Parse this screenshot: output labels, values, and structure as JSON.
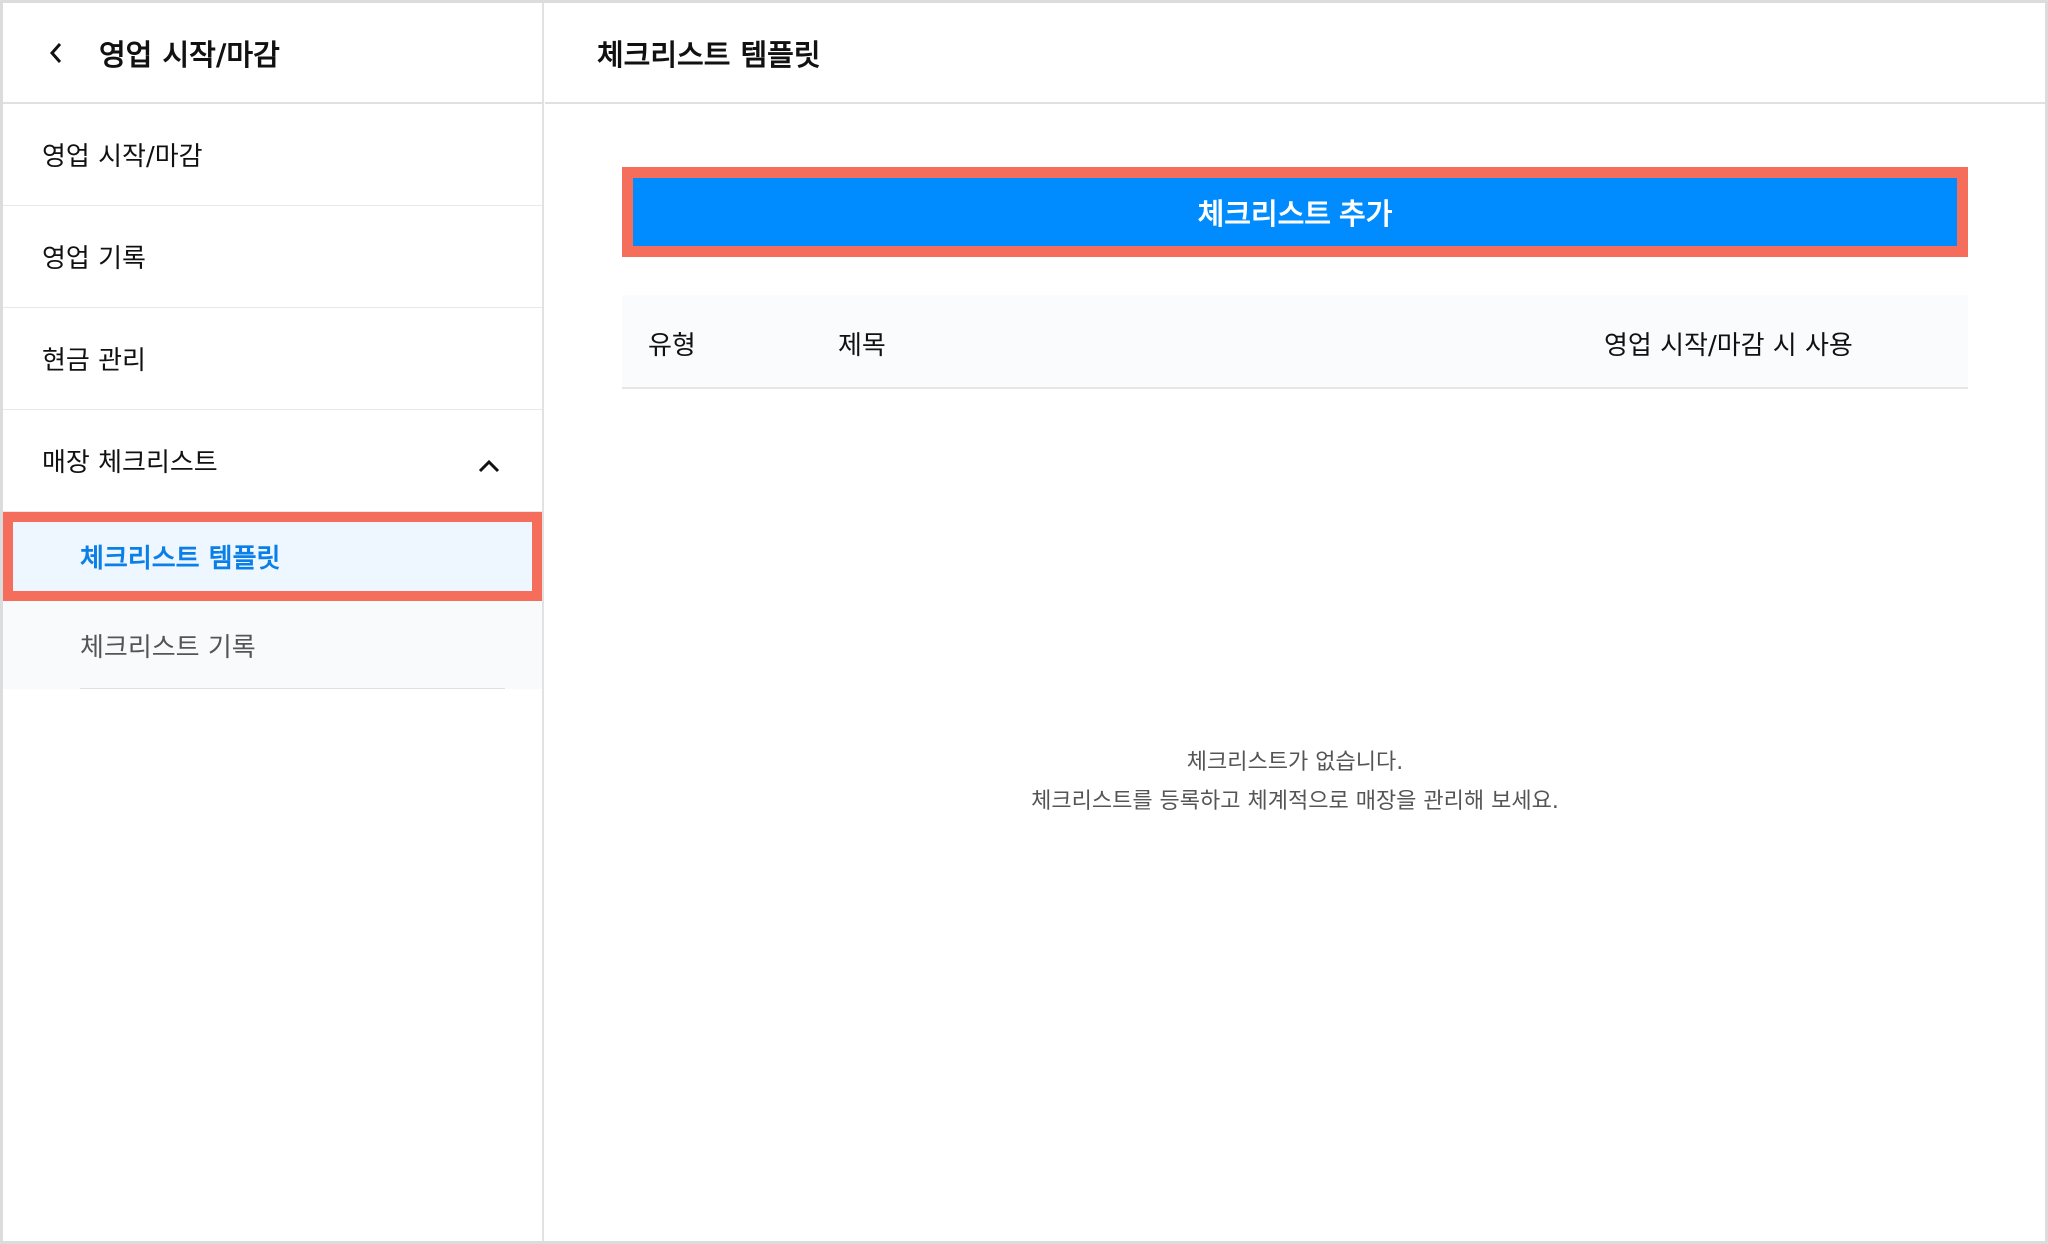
{
  "sidebar": {
    "title": "영업 시작/마감",
    "items": [
      {
        "label": "영업 시작/마감"
      },
      {
        "label": "영업 기록"
      },
      {
        "label": "현금 관리"
      },
      {
        "label": "매장 체크리스트",
        "expanded": true
      }
    ],
    "sub_items": [
      {
        "label": "체크리스트 템플릿",
        "active": true
      },
      {
        "label": "체크리스트 기록"
      }
    ]
  },
  "main": {
    "title": "체크리스트 템플릿",
    "add_button": "체크리스트 추가",
    "columns": [
      "유형",
      "제목",
      "영업 시작/마감 시 사용"
    ],
    "empty": {
      "line1": "체크리스트가 없습니다.",
      "line2": "체크리스트를 등록하고 체계적으로 매장을 관리해 보세요."
    }
  },
  "colors": {
    "accent": "#008cff",
    "highlight": "#f56e5c",
    "active_text": "#0a7fe8"
  }
}
